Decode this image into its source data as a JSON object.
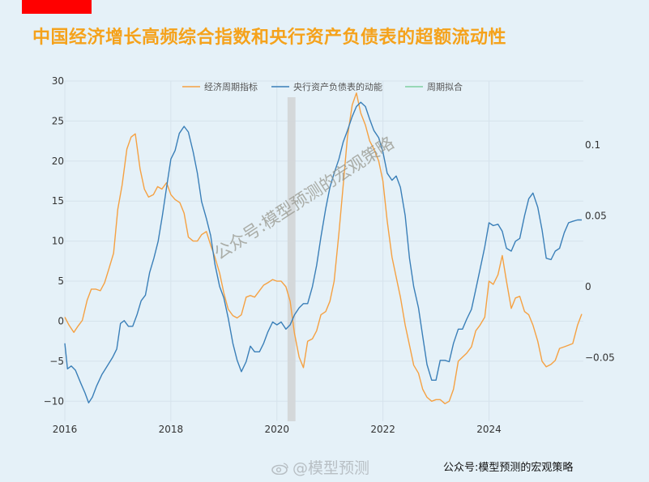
{
  "header": {
    "title": "中国经济增长高频综合指数和央行资产负债表的超额流动性"
  },
  "watermark": "公众号:模型预测的宏观策略",
  "footer": {
    "weibo_handle": "@模型预测",
    "credit": "公众号:模型预测的宏观策略"
  },
  "colors": {
    "accent_bar": "#ff0000",
    "title": "#f5a21b",
    "orange_series": "#f5a142",
    "blue_series": "#3a7fb8",
    "green_series": "#7fcf9f",
    "highlight": "#cccccc"
  },
  "chart_data": {
    "type": "line",
    "title": "",
    "legend": {
      "position": "top",
      "items": [
        "经济周期指标",
        "央行资产负债表的动能",
        "周期拟合"
      ]
    },
    "grid": true,
    "x_range": [
      2016,
      2025.78
    ],
    "x_ticks": [
      "2016",
      "2018",
      "2020",
      "2022",
      "2024"
    ],
    "y_left": {
      "range": [
        -12.5,
        30
      ],
      "ticks": [
        "30",
        "25",
        "20",
        "15",
        "10",
        "5",
        "0",
        "−5",
        "−10"
      ]
    },
    "y_right": {
      "range": [
        -0.095,
        0.145
      ],
      "ticks": [
        "0.1",
        "0.05",
        "0",
        "−0.05"
      ]
    },
    "shaded_period": [
      2020.2,
      2020.35
    ],
    "series": [
      {
        "name": "经济周期指标",
        "axis": "left",
        "color": "#f5a142",
        "points": [
          [
            2016.0,
            0.5
          ],
          [
            2016.08,
            -0.5
          ],
          [
            2016.17,
            -1.4
          ],
          [
            2016.25,
            -0.6
          ],
          [
            2016.33,
            0.1
          ],
          [
            2016.42,
            2.6
          ],
          [
            2016.5,
            4.0
          ],
          [
            2016.58,
            4.0
          ],
          [
            2016.67,
            3.8
          ],
          [
            2016.75,
            4.8
          ],
          [
            2016.83,
            6.5
          ],
          [
            2016.92,
            8.5
          ],
          [
            2017.0,
            14.0
          ],
          [
            2017.08,
            17.0
          ],
          [
            2017.17,
            21.5
          ],
          [
            2017.25,
            23.0
          ],
          [
            2017.33,
            23.4
          ],
          [
            2017.42,
            19.0
          ],
          [
            2017.5,
            16.5
          ],
          [
            2017.58,
            15.5
          ],
          [
            2017.67,
            15.8
          ],
          [
            2017.75,
            16.8
          ],
          [
            2017.83,
            16.5
          ],
          [
            2017.92,
            17.3
          ],
          [
            2018.0,
            15.8
          ],
          [
            2018.08,
            15.2
          ],
          [
            2018.17,
            14.8
          ],
          [
            2018.25,
            13.5
          ],
          [
            2018.33,
            10.5
          ],
          [
            2018.42,
            10.0
          ],
          [
            2018.5,
            10.0
          ],
          [
            2018.58,
            10.8
          ],
          [
            2018.67,
            11.2
          ],
          [
            2018.75,
            9.5
          ],
          [
            2018.83,
            8.0
          ],
          [
            2018.92,
            6.0
          ],
          [
            2019.0,
            3.5
          ],
          [
            2019.08,
            1.5
          ],
          [
            2019.17,
            0.7
          ],
          [
            2019.25,
            0.4
          ],
          [
            2019.33,
            0.8
          ],
          [
            2019.42,
            3.0
          ],
          [
            2019.5,
            3.2
          ],
          [
            2019.58,
            3.0
          ],
          [
            2019.67,
            3.8
          ],
          [
            2019.75,
            4.5
          ],
          [
            2019.83,
            4.8
          ],
          [
            2019.92,
            5.2
          ],
          [
            2020.0,
            5.0
          ],
          [
            2020.08,
            5.0
          ],
          [
            2020.17,
            4.3
          ],
          [
            2020.25,
            2.5
          ],
          [
            2020.33,
            -1.5
          ],
          [
            2020.42,
            -4.5
          ],
          [
            2020.5,
            -5.8
          ],
          [
            2020.58,
            -2.5
          ],
          [
            2020.67,
            -2.2
          ],
          [
            2020.75,
            -1.2
          ],
          [
            2020.83,
            0.8
          ],
          [
            2020.92,
            1.2
          ],
          [
            2021.0,
            2.5
          ],
          [
            2021.08,
            5.0
          ],
          [
            2021.17,
            11.0
          ],
          [
            2021.25,
            17.0
          ],
          [
            2021.33,
            23.0
          ],
          [
            2021.42,
            27.0
          ],
          [
            2021.5,
            28.5
          ],
          [
            2021.58,
            26.0
          ],
          [
            2021.67,
            24.5
          ],
          [
            2021.75,
            22.5
          ],
          [
            2021.83,
            21.5
          ],
          [
            2021.92,
            20.0
          ],
          [
            2022.0,
            17.5
          ],
          [
            2022.08,
            12.5
          ],
          [
            2022.17,
            8.0
          ],
          [
            2022.25,
            5.5
          ],
          [
            2022.33,
            3.0
          ],
          [
            2022.42,
            -0.5
          ],
          [
            2022.5,
            -3.0
          ],
          [
            2022.58,
            -5.5
          ],
          [
            2022.67,
            -6.5
          ],
          [
            2022.75,
            -8.5
          ],
          [
            2022.83,
            -9.5
          ],
          [
            2022.92,
            -10.0
          ],
          [
            2023.0,
            -9.8
          ],
          [
            2023.08,
            -9.8
          ],
          [
            2023.17,
            -10.3
          ],
          [
            2023.25,
            -10.0
          ],
          [
            2023.33,
            -8.5
          ],
          [
            2023.42,
            -5.0
          ],
          [
            2023.5,
            -4.5
          ],
          [
            2023.58,
            -4.0
          ],
          [
            2023.67,
            -3.2
          ],
          [
            2023.75,
            -1.2
          ],
          [
            2023.83,
            -0.5
          ],
          [
            2023.92,
            0.5
          ],
          [
            2024.0,
            5.0
          ],
          [
            2024.08,
            4.6
          ],
          [
            2024.17,
            5.8
          ],
          [
            2024.25,
            8.2
          ],
          [
            2024.33,
            5.0
          ],
          [
            2024.42,
            1.6
          ],
          [
            2024.5,
            2.9
          ],
          [
            2024.58,
            3.1
          ],
          [
            2024.67,
            1.2
          ],
          [
            2024.75,
            0.8
          ],
          [
            2024.83,
            -0.5
          ],
          [
            2024.92,
            -2.5
          ],
          [
            2025.0,
            -5.0
          ],
          [
            2025.08,
            -5.7
          ],
          [
            2025.17,
            -5.4
          ],
          [
            2025.25,
            -4.9
          ],
          [
            2025.33,
            -3.4
          ],
          [
            2025.42,
            -3.2
          ],
          [
            2025.5,
            -3.0
          ],
          [
            2025.58,
            -2.8
          ],
          [
            2025.67,
            -0.5
          ],
          [
            2025.75,
            0.9
          ]
        ]
      },
      {
        "name": "央行资产负债表的动能",
        "axis": "right",
        "color": "#3a7fb8",
        "points": [
          [
            2016.0,
            -0.04
          ],
          [
            2016.05,
            -0.058
          ],
          [
            2016.12,
            -0.056
          ],
          [
            2016.2,
            -0.059
          ],
          [
            2016.3,
            -0.068
          ],
          [
            2016.38,
            -0.075
          ],
          [
            2016.45,
            -0.082
          ],
          [
            2016.52,
            -0.078
          ],
          [
            2016.6,
            -0.07
          ],
          [
            2016.7,
            -0.062
          ],
          [
            2016.8,
            -0.056
          ],
          [
            2016.9,
            -0.05
          ],
          [
            2016.98,
            -0.044
          ],
          [
            2017.05,
            -0.026
          ],
          [
            2017.12,
            -0.024
          ],
          [
            2017.2,
            -0.028
          ],
          [
            2017.28,
            -0.028
          ],
          [
            2017.36,
            -0.02
          ],
          [
            2017.44,
            -0.01
          ],
          [
            2017.52,
            -0.006
          ],
          [
            2017.6,
            0.01
          ],
          [
            2017.68,
            0.02
          ],
          [
            2017.76,
            0.032
          ],
          [
            2017.84,
            0.05
          ],
          [
            2017.92,
            0.07
          ],
          [
            2018.0,
            0.09
          ],
          [
            2018.08,
            0.096
          ],
          [
            2018.16,
            0.108
          ],
          [
            2018.25,
            0.113
          ],
          [
            2018.33,
            0.109
          ],
          [
            2018.42,
            0.095
          ],
          [
            2018.5,
            0.08
          ],
          [
            2018.58,
            0.06
          ],
          [
            2018.67,
            0.048
          ],
          [
            2018.75,
            0.036
          ],
          [
            2018.83,
            0.016
          ],
          [
            2018.92,
            0.0
          ],
          [
            2019.0,
            -0.008
          ],
          [
            2019.08,
            -0.022
          ],
          [
            2019.17,
            -0.04
          ],
          [
            2019.25,
            -0.052
          ],
          [
            2019.33,
            -0.06
          ],
          [
            2019.42,
            -0.053
          ],
          [
            2019.5,
            -0.042
          ],
          [
            2019.58,
            -0.046
          ],
          [
            2019.67,
            -0.046
          ],
          [
            2019.75,
            -0.04
          ],
          [
            2019.83,
            -0.032
          ],
          [
            2019.92,
            -0.025
          ],
          [
            2020.0,
            -0.027
          ],
          [
            2020.08,
            -0.025
          ],
          [
            2020.17,
            -0.03
          ],
          [
            2020.25,
            -0.027
          ],
          [
            2020.33,
            -0.02
          ],
          [
            2020.42,
            -0.015
          ],
          [
            2020.5,
            -0.012
          ],
          [
            2020.58,
            -0.012
          ],
          [
            2020.67,
            0.0
          ],
          [
            2020.75,
            0.015
          ],
          [
            2020.83,
            0.035
          ],
          [
            2020.92,
            0.055
          ],
          [
            2021.0,
            0.07
          ],
          [
            2021.08,
            0.08
          ],
          [
            2021.17,
            0.09
          ],
          [
            2021.25,
            0.102
          ],
          [
            2021.33,
            0.11
          ],
          [
            2021.42,
            0.12
          ],
          [
            2021.5,
            0.127
          ],
          [
            2021.58,
            0.13
          ],
          [
            2021.67,
            0.127
          ],
          [
            2021.75,
            0.118
          ],
          [
            2021.83,
            0.11
          ],
          [
            2021.92,
            0.105
          ],
          [
            2022.0,
            0.095
          ],
          [
            2022.08,
            0.08
          ],
          [
            2022.17,
            0.075
          ],
          [
            2022.25,
            0.078
          ],
          [
            2022.33,
            0.07
          ],
          [
            2022.42,
            0.05
          ],
          [
            2022.5,
            0.02
          ],
          [
            2022.58,
            0.0
          ],
          [
            2022.67,
            -0.015
          ],
          [
            2022.75,
            -0.035
          ],
          [
            2022.83,
            -0.055
          ],
          [
            2022.92,
            -0.066
          ],
          [
            2023.0,
            -0.066
          ],
          [
            2023.08,
            -0.052
          ],
          [
            2023.17,
            -0.052
          ],
          [
            2023.25,
            -0.053
          ],
          [
            2023.33,
            -0.04
          ],
          [
            2023.42,
            -0.03
          ],
          [
            2023.5,
            -0.03
          ],
          [
            2023.58,
            -0.023
          ],
          [
            2023.67,
            -0.016
          ],
          [
            2023.75,
            -0.002
          ],
          [
            2023.83,
            0.012
          ],
          [
            2023.92,
            0.028
          ],
          [
            2024.0,
            0.045
          ],
          [
            2024.08,
            0.043
          ],
          [
            2024.17,
            0.044
          ],
          [
            2024.25,
            0.039
          ],
          [
            2024.33,
            0.027
          ],
          [
            2024.42,
            0.025
          ],
          [
            2024.5,
            0.032
          ],
          [
            2024.58,
            0.034
          ],
          [
            2024.67,
            0.05
          ],
          [
            2024.75,
            0.062
          ],
          [
            2024.83,
            0.066
          ],
          [
            2024.92,
            0.056
          ],
          [
            2025.0,
            0.04
          ],
          [
            2025.08,
            0.02
          ],
          [
            2025.17,
            0.019
          ],
          [
            2025.25,
            0.025
          ],
          [
            2025.33,
            0.027
          ],
          [
            2025.42,
            0.038
          ],
          [
            2025.5,
            0.045
          ],
          [
            2025.58,
            0.046
          ],
          [
            2025.67,
            0.047
          ],
          [
            2025.75,
            0.047
          ]
        ]
      },
      {
        "name": "周期拟合",
        "axis": "right",
        "color": "#7fcf9f",
        "points": []
      }
    ]
  }
}
